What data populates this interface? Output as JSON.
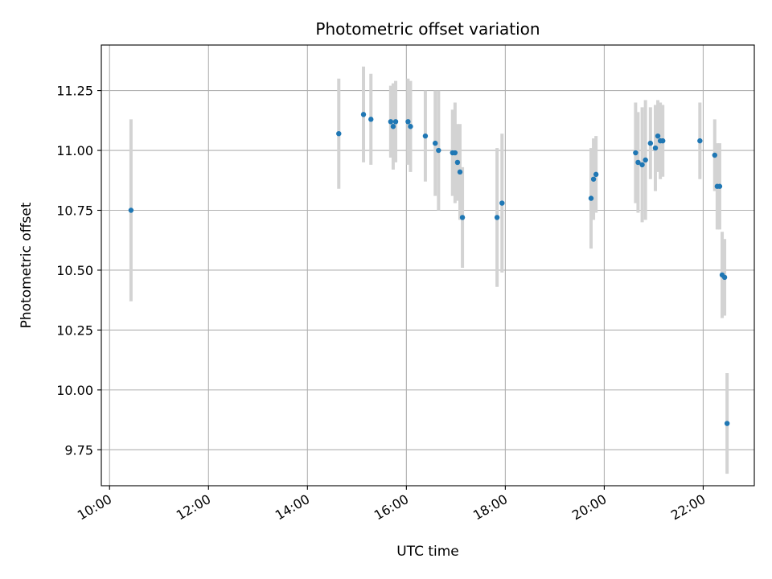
{
  "chart_data": {
    "type": "scatter",
    "title": "Photometric offset variation",
    "xlabel": "UTC time",
    "ylabel": "Photometric offset",
    "x_ticks": [
      "10:00",
      "12:00",
      "14:00",
      "16:00",
      "18:00",
      "20:00",
      "22:00"
    ],
    "y_ticks": [
      "9.75",
      "10.00",
      "10.25",
      "10.50",
      "10.75",
      "11.00",
      "11.25"
    ],
    "xlim": [
      "09:50",
      "23:02"
    ],
    "ylim": [
      9.6,
      11.44
    ],
    "grid": true,
    "colors": {
      "point": "#1f77b4",
      "errorbar": "#d3d3d3",
      "grid": "#b0b0b0"
    },
    "points": [
      {
        "x": "10:26",
        "y": 10.75,
        "err": 0.38
      },
      {
        "x": "14:38",
        "y": 11.07,
        "err": 0.23
      },
      {
        "x": "15:08",
        "y": 11.15,
        "err": 0.2
      },
      {
        "x": "15:17",
        "y": 11.13,
        "err": 0.19
      },
      {
        "x": "15:41",
        "y": 11.12,
        "err": 0.15
      },
      {
        "x": "15:44",
        "y": 11.1,
        "err": 0.18
      },
      {
        "x": "15:47",
        "y": 11.12,
        "err": 0.17
      },
      {
        "x": "16:02",
        "y": 11.12,
        "err": 0.18
      },
      {
        "x": "16:05",
        "y": 11.1,
        "err": 0.19
      },
      {
        "x": "16:23",
        "y": 11.06,
        "err": 0.19
      },
      {
        "x": "16:35",
        "y": 11.03,
        "err": 0.22
      },
      {
        "x": "16:39",
        "y": 11.0,
        "err": 0.25
      },
      {
        "x": "16:56",
        "y": 10.99,
        "err": 0.18
      },
      {
        "x": "16:59",
        "y": 10.99,
        "err": 0.21
      },
      {
        "x": "17:02",
        "y": 10.95,
        "err": 0.16
      },
      {
        "x": "17:05",
        "y": 10.91,
        "err": 0.2
      },
      {
        "x": "17:08",
        "y": 10.72,
        "err": 0.21
      },
      {
        "x": "17:50",
        "y": 10.72,
        "err": 0.29
      },
      {
        "x": "17:56",
        "y": 10.78,
        "err": 0.29
      },
      {
        "x": "19:44",
        "y": 10.8,
        "err": 0.21
      },
      {
        "x": "19:47",
        "y": 10.88,
        "err": 0.17
      },
      {
        "x": "19:50",
        "y": 10.9,
        "err": 0.16
      },
      {
        "x": "20:38",
        "y": 10.99,
        "err": 0.21
      },
      {
        "x": "20:41",
        "y": 10.95,
        "err": 0.21
      },
      {
        "x": "20:46",
        "y": 10.94,
        "err": 0.24
      },
      {
        "x": "20:50",
        "y": 10.96,
        "err": 0.25
      },
      {
        "x": "20:56",
        "y": 11.03,
        "err": 0.15
      },
      {
        "x": "21:02",
        "y": 11.01,
        "err": 0.18
      },
      {
        "x": "21:05",
        "y": 11.06,
        "err": 0.15
      },
      {
        "x": "21:08",
        "y": 11.04,
        "err": 0.16
      },
      {
        "x": "21:11",
        "y": 11.04,
        "err": 0.15
      },
      {
        "x": "21:56",
        "y": 11.04,
        "err": 0.16
      },
      {
        "x": "22:14",
        "y": 10.98,
        "err": 0.15
      },
      {
        "x": "22:17",
        "y": 10.85,
        "err": 0.18
      },
      {
        "x": "22:20",
        "y": 10.85,
        "err": 0.18
      },
      {
        "x": "22:23",
        "y": 10.48,
        "err": 0.18
      },
      {
        "x": "22:26",
        "y": 10.47,
        "err": 0.16
      },
      {
        "x": "22:29",
        "y": 9.86,
        "err": 0.21
      }
    ]
  }
}
